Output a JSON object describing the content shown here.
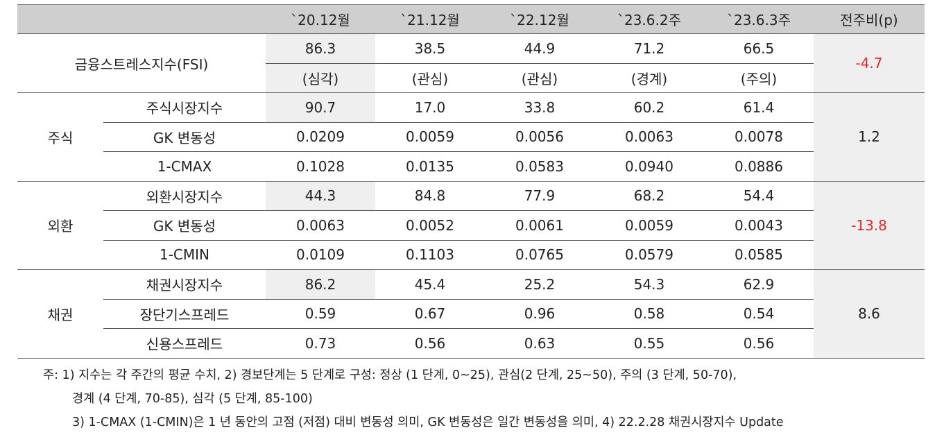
{
  "header": [
    "",
    "`20.12월",
    "`21.12월",
    "`22.12월",
    "`23.6.2주",
    "`23.6.3주",
    "전주비(p)"
  ],
  "fsi": {
    "label": "금융스트레스지수(FSI)",
    "values": [
      "86.3",
      "38.5",
      "44.9",
      "71.2",
      "66.5"
    ],
    "stages": [
      "(심각)",
      "(관심)",
      "(관심)",
      "(경계)",
      "(주의)"
    ],
    "change": "-4.7"
  },
  "sections": [
    {
      "label": "주식",
      "change": "1.2",
      "rows": [
        {
          "name": "주식시장지수",
          "values": [
            "90.7",
            "17.0",
            "33.8",
            "60.2",
            "61.4"
          ]
        },
        {
          "name": "GK 변동성",
          "values": [
            "0.0209",
            "0.0059",
            "0.0056",
            "0.0063",
            "0.0078"
          ]
        },
        {
          "name": "1-CMAX",
          "values": [
            "0.1028",
            "0.0135",
            "0.0583",
            "0.0940",
            "0.0886"
          ]
        }
      ]
    },
    {
      "label": "외환",
      "change": "-13.8",
      "rows": [
        {
          "name": "외환시장지수",
          "values": [
            "44.3",
            "84.8",
            "77.9",
            "68.2",
            "54.4"
          ]
        },
        {
          "name": "GK 변동성",
          "values": [
            "0.0063",
            "0.0052",
            "0.0061",
            "0.0059",
            "0.0043"
          ]
        },
        {
          "name": "1-CMIN",
          "values": [
            "0.0109",
            "0.1103",
            "0.0765",
            "0.0579",
            "0.0585"
          ]
        }
      ]
    },
    {
      "label": "채권",
      "change": "8.6",
      "rows": [
        {
          "name": "채권시장지수",
          "values": [
            "86.2",
            "45.4",
            "25.2",
            "54.3",
            "62.9"
          ]
        },
        {
          "name": "장단기스프레드",
          "values": [
            "0.59",
            "0.67",
            "0.96",
            "0.58",
            "0.54"
          ]
        },
        {
          "name": "신용스프레드",
          "values": [
            "0.73",
            "0.56",
            "0.63",
            "0.55",
            "0.56"
          ]
        }
      ]
    }
  ],
  "notes": [
    "주: 1) 지수는 각 주간의 평균 수치, 2) 경보단계는 5 단계로 구성: 정상 (1 단계, 0~25), 관심(2 단계, 25~50), 주의 (3 단계, 50-70),",
    "경계 (4 단계, 70-85), 심각 (5 단계, 85-100)",
    "3) 1-CMAX (1-CMIN)은 1 년 동안의 고점 (저점) 대비 변동성 의미, GK 변동성은 일간 변동성을 의미, 4) 22.2.28 채권시장지수 Update"
  ],
  "colors": {
    "negative": "#e8262d",
    "header_bg": "#cfcfcf",
    "highlight_bg": "#efefef"
  }
}
